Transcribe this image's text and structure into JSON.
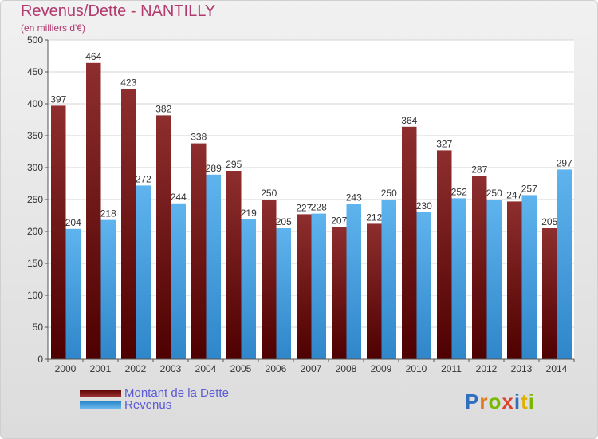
{
  "chart_data": {
    "type": "bar",
    "title": "Revenus/Dette - NANTILLY",
    "subtitle": "(en milliers d'€)",
    "categories": [
      "2000",
      "2001",
      "2002",
      "2003",
      "2004",
      "2005",
      "2006",
      "2007",
      "2008",
      "2009",
      "2010",
      "2011",
      "2012",
      "2013",
      "2014"
    ],
    "series": [
      {
        "name": "Montant de la Dette",
        "values": [
          397,
          464,
          423,
          382,
          338,
          295,
          250,
          227,
          207,
          212,
          364,
          327,
          287,
          247,
          205
        ],
        "color": "#7a1a1a"
      },
      {
        "name": "Revenus",
        "values": [
          204,
          218,
          272,
          244,
          289,
          219,
          205,
          228,
          243,
          250,
          230,
          252,
          250,
          257,
          297
        ],
        "color": "#4aa3e3"
      }
    ],
    "ylim": [
      0,
      500
    ],
    "yticks": [
      0,
      50,
      100,
      150,
      200,
      250,
      300,
      350,
      400,
      450,
      500
    ],
    "grid": true,
    "legend_position": "bottom-left"
  },
  "logo": {
    "text": "Proxiti",
    "letters": [
      {
        "ch": "P",
        "color": "#2f6fc0"
      },
      {
        "ch": "r",
        "color": "#e07a1c"
      },
      {
        "ch": "o",
        "color": "#7ab800"
      },
      {
        "ch": "x",
        "color": "#e0402a"
      },
      {
        "ch": "i",
        "color": "#2f6fc0"
      },
      {
        "ch": "t",
        "color": "#e0b000"
      },
      {
        "ch": "i",
        "color": "#7ab800"
      }
    ]
  }
}
